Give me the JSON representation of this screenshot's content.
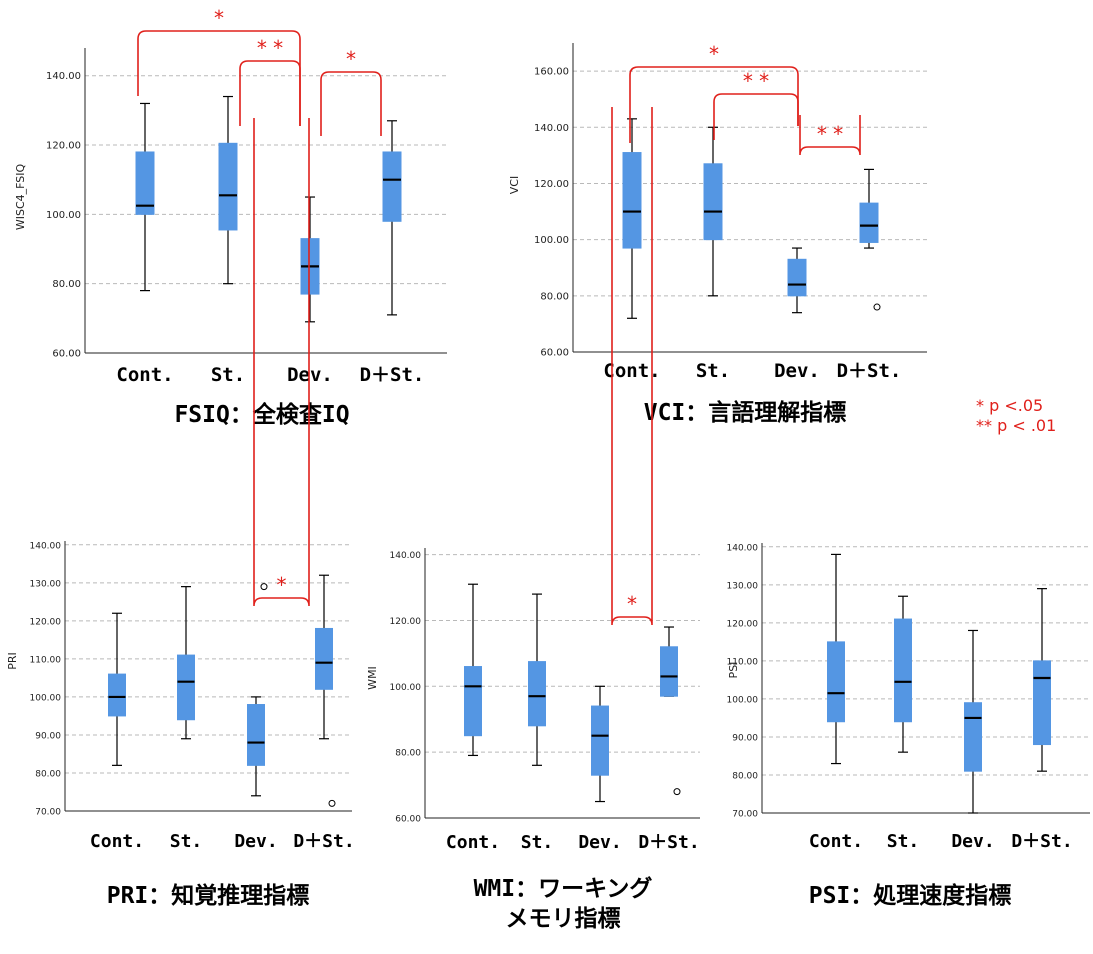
{
  "legend": {
    "p05": "*  p <.05",
    "p01": "** p < .01"
  },
  "colors": {
    "box": "#5496e3",
    "whisker": "#000000",
    "grid": "#b9b9b9",
    "significance": "#e0201b",
    "outlier": "#000000"
  },
  "chart_data": [
    {
      "type": "boxplot",
      "id": "fsiq",
      "title": "FSIQ：全検査IQ",
      "ylabel": "WISC4_FSIQ",
      "ylim": [
        60,
        148
      ],
      "yticks": [
        60,
        80,
        100,
        120,
        140
      ],
      "tick_labels": [
        "60.00",
        "80.00",
        "100.00",
        "120.00",
        "140.00"
      ],
      "grid": true,
      "categories": [
        "Cont.",
        "St.",
        "Dev.",
        "D＋St."
      ],
      "boxes": [
        {
          "min": 78,
          "q1": 100,
          "median": 102.5,
          "q3": 118,
          "max": 132,
          "outliers": []
        },
        {
          "min": 80,
          "q1": 95.5,
          "median": 105.5,
          "q3": 120.5,
          "max": 134,
          "outliers": []
        },
        {
          "min": 69,
          "q1": 77,
          "median": 85,
          "q3": 93,
          "max": 105,
          "outliers": []
        },
        {
          "min": 71,
          "q1": 98,
          "median": 110,
          "q3": 118,
          "max": 127,
          "outliers": []
        }
      ],
      "significance": [
        {
          "from": 0,
          "to": 2,
          "label": "*"
        },
        {
          "from": 1,
          "to": 2,
          "label": "* *"
        },
        {
          "from": 2,
          "to": 3,
          "label": "*"
        }
      ]
    },
    {
      "type": "boxplot",
      "id": "vci",
      "title": "VCI：言語理解指標",
      "ylabel": "VCI",
      "ylim": [
        60,
        170
      ],
      "yticks": [
        60,
        80,
        100,
        120,
        140,
        160
      ],
      "tick_labels": [
        "60.00",
        "80.00",
        "100.00",
        "120.00",
        "140.00",
        "160.00"
      ],
      "grid": true,
      "categories": [
        "Cont.",
        "St.",
        "Dev.",
        "D＋St."
      ],
      "boxes": [
        {
          "min": 72,
          "q1": 97,
          "median": 110,
          "q3": 131,
          "max": 143,
          "outliers": []
        },
        {
          "min": 80,
          "q1": 100,
          "median": 110,
          "q3": 127,
          "max": 140,
          "outliers": []
        },
        {
          "min": 74,
          "q1": 80,
          "median": 84,
          "q3": 93,
          "max": 97,
          "outliers": []
        },
        {
          "min": 97,
          "q1": 99,
          "median": 105,
          "q3": 113,
          "max": 125,
          "outliers": [
            76
          ]
        }
      ],
      "significance": [
        {
          "from": 0,
          "to": 2,
          "label": "*"
        },
        {
          "from": 1,
          "to": 2,
          "label": "* *"
        },
        {
          "from": 2,
          "to": 3,
          "label": "* *"
        }
      ]
    },
    {
      "type": "boxplot",
      "id": "pri",
      "title": "PRI：知覚推理指標",
      "ylabel": "PRI",
      "ylim": [
        70,
        141
      ],
      "yticks": [
        70,
        80,
        90,
        100,
        110,
        120,
        130,
        140
      ],
      "tick_labels": [
        "70.00",
        "80.00",
        "90.00",
        "100.00",
        "110.00",
        "120.00",
        "130.00",
        "140.00"
      ],
      "grid": true,
      "categories": [
        "Cont.",
        "St.",
        "Dev.",
        "D＋St."
      ],
      "boxes": [
        {
          "min": 82,
          "q1": 95,
          "median": 100,
          "q3": 106,
          "max": 122,
          "outliers": []
        },
        {
          "min": 89,
          "q1": 94,
          "median": 104,
          "q3": 111,
          "max": 129,
          "outliers": []
        },
        {
          "min": 74,
          "q1": 82,
          "median": 88,
          "q3": 98,
          "max": 100,
          "outliers": [
            129
          ]
        },
        {
          "min": 89,
          "q1": 102,
          "median": 109,
          "q3": 118,
          "max": 132,
          "outliers": [
            72
          ]
        }
      ],
      "significance": [
        {
          "from": 2,
          "to": 3,
          "label": "*"
        }
      ]
    },
    {
      "type": "boxplot",
      "id": "wmi",
      "title": "WMI：ワーキング\nメモリ指標",
      "ylabel": "WMI",
      "ylim": [
        60,
        142
      ],
      "yticks": [
        60,
        80,
        100,
        120,
        140
      ],
      "tick_labels": [
        "60.00",
        "80.00",
        "100.00",
        "120.00",
        "140.00"
      ],
      "grid": true,
      "categories": [
        "Cont.",
        "St.",
        "Dev.",
        "D＋St."
      ],
      "boxes": [
        {
          "min": 79,
          "q1": 85,
          "median": 100,
          "q3": 106,
          "max": 131,
          "outliers": []
        },
        {
          "min": 76,
          "q1": 88,
          "median": 97,
          "q3": 107.5,
          "max": 128,
          "outliers": []
        },
        {
          "min": 65,
          "q1": 73,
          "median": 85,
          "q3": 94,
          "max": 100,
          "outliers": []
        },
        {
          "min": 97,
          "q1": 97,
          "median": 103,
          "q3": 112,
          "max": 118,
          "outliers": [
            68
          ]
        }
      ],
      "significance": [
        {
          "from": 2,
          "to": 3,
          "label": "*"
        }
      ]
    },
    {
      "type": "boxplot",
      "id": "psi",
      "title": "PSI：処理速度指標",
      "ylabel": "PSI",
      "ylim": [
        70,
        141
      ],
      "yticks": [
        70,
        80,
        90,
        100,
        110,
        120,
        130,
        140
      ],
      "tick_labels": [
        "70.00",
        "80.00",
        "90.00",
        "100.00",
        "110.00",
        "120.00",
        "130.00",
        "140.00"
      ],
      "grid": true,
      "categories": [
        "Cont.",
        "St.",
        "Dev.",
        "D＋St."
      ],
      "boxes": [
        {
          "min": 83,
          "q1": 94,
          "median": 101.5,
          "q3": 115,
          "max": 138,
          "outliers": []
        },
        {
          "min": 86,
          "q1": 94,
          "median": 104.5,
          "q3": 121,
          "max": 127,
          "outliers": []
        },
        {
          "min": 70,
          "q1": 81,
          "median": 95,
          "q3": 99,
          "max": 118,
          "outliers": []
        },
        {
          "min": 81,
          "q1": 88,
          "median": 105.5,
          "q3": 110,
          "max": 129,
          "outliers": []
        }
      ],
      "significance": []
    }
  ]
}
